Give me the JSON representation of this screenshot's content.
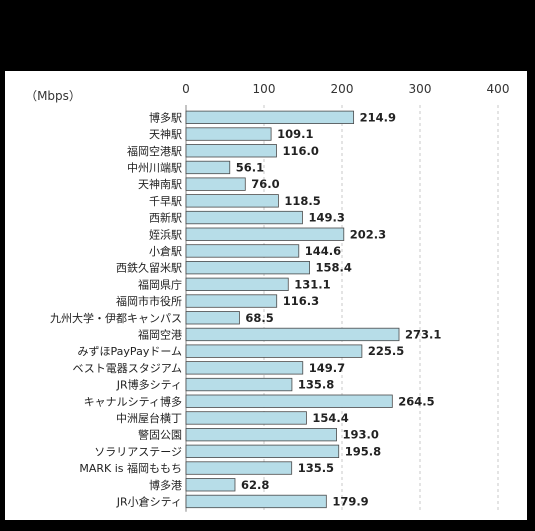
{
  "chart_data": {
    "type": "bar",
    "orientation": "horizontal",
    "unit_label": "（Mbps）",
    "xlim": [
      0,
      400
    ],
    "x_ticks": [
      "0",
      "100",
      "200",
      "300",
      "400"
    ],
    "grid": "vertical dashed",
    "bar_color": "#b7dde8",
    "bar_border": "#4a4a4a",
    "categories": [
      "博多駅",
      "天神駅",
      "福岡空港駅",
      "中州川端駅",
      "天神南駅",
      "千早駅",
      "西新駅",
      "姪浜駅",
      "小倉駅",
      "西鉄久留米駅",
      "福岡県庁",
      "福岡市市役所",
      "九州大学・伊都キャンパス",
      "福岡空港",
      "みずほPayPayドーム",
      "ベスト電器スタジアム",
      "JR博多シティ",
      "キャナルシティ博多",
      "中洲屋台横丁",
      "警固公園",
      "ソラリアステージ",
      "MARK is 福岡ももち",
      "博多港",
      "JR小倉シティ"
    ],
    "values": [
      214.9,
      109.1,
      116.0,
      56.1,
      76.0,
      118.5,
      149.3,
      202.3,
      144.6,
      158.4,
      131.1,
      116.3,
      68.5,
      273.1,
      225.5,
      149.7,
      135.8,
      264.5,
      154.4,
      193.0,
      195.8,
      135.5,
      62.8,
      179.9
    ],
    "value_labels": [
      "214.9",
      "109.1",
      "116.0",
      "56.1",
      "76.0",
      "118.5",
      "149.3",
      "202.3",
      "144.6",
      "158.4",
      "131.1",
      "116.3",
      "68.5",
      "273.1",
      "225.5",
      "149.7",
      "135.8",
      "264.5",
      "154.4",
      "193.0",
      "195.8",
      "135.5",
      "62.8",
      "179.9"
    ]
  }
}
